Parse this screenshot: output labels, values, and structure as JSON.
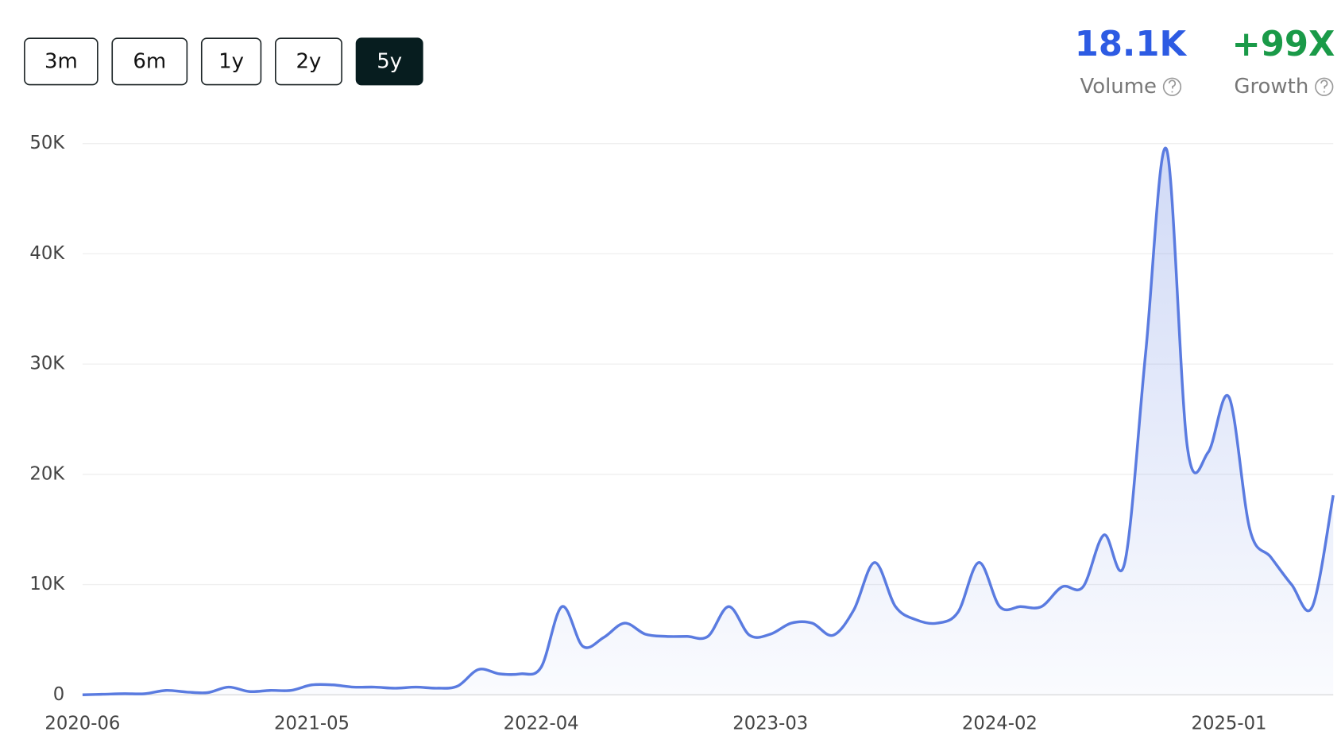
{
  "range_buttons": [
    "3m",
    "6m",
    "1y",
    "2y",
    "5y"
  ],
  "selected_range": "5y",
  "stats": [
    {
      "value": "18.1K",
      "label": "Volume",
      "color": "#2d5be3"
    },
    {
      "value": "+99X",
      "label": "Growth",
      "color": "#1a9a48"
    }
  ],
  "chart_data": {
    "type": "area",
    "color": "#5a7be0",
    "grid": true,
    "x": [
      "2020-06",
      "2020-07",
      "2020-08",
      "2020-09",
      "2020-10",
      "2020-11",
      "2020-12",
      "2021-01",
      "2021-02",
      "2021-03",
      "2021-04",
      "2021-05",
      "2021-06",
      "2021-07",
      "2021-08",
      "2021-09",
      "2021-10",
      "2021-11",
      "2021-12",
      "2022-01",
      "2022-02",
      "2022-03",
      "2022-04",
      "2022-05",
      "2022-06",
      "2022-07",
      "2022-08",
      "2022-09",
      "2022-10",
      "2022-11",
      "2022-12",
      "2023-01",
      "2023-02",
      "2023-03",
      "2023-04",
      "2023-05",
      "2023-06",
      "2023-07",
      "2023-08",
      "2023-09",
      "2023-10",
      "2023-11",
      "2023-12",
      "2024-01",
      "2024-02",
      "2024-03",
      "2024-04",
      "2024-05",
      "2024-06",
      "2024-07",
      "2024-08",
      "2024-09",
      "2024-10",
      "2024-11",
      "2024-12",
      "2025-01",
      "2025-02",
      "2025-03",
      "2025-04",
      "2025-05",
      "2025-06"
    ],
    "values": [
      0,
      50,
      100,
      100,
      400,
      250,
      200,
      700,
      300,
      400,
      400,
      900,
      900,
      700,
      700,
      600,
      700,
      600,
      800,
      2300,
      1900,
      1900,
      2500,
      8000,
      4400,
      5200,
      6500,
      5500,
      5300,
      5300,
      5300,
      8000,
      5400,
      5500,
      6500,
      6500,
      5400,
      7700,
      12000,
      8000,
      6800,
      6500,
      7500,
      12000,
      8000,
      8000,
      8000,
      9800,
      9800,
      14500,
      12000,
      31000,
      49500,
      22500,
      22000,
      27000,
      15000,
      12500,
      10000,
      8000,
      18100
    ],
    "xticks": [
      "2020-06",
      "2021-05",
      "2022-04",
      "2023-03",
      "2024-02",
      "2025-01"
    ],
    "ylim": [
      0,
      50000
    ],
    "yticks": [
      0,
      {
        "value": 10000,
        "label": "10K"
      },
      {
        "value": 20000,
        "label": "20K"
      },
      {
        "value": 30000,
        "label": "30K"
      },
      {
        "value": 40000,
        "label": "40K"
      },
      {
        "value": 50000,
        "label": "50K"
      }
    ]
  }
}
